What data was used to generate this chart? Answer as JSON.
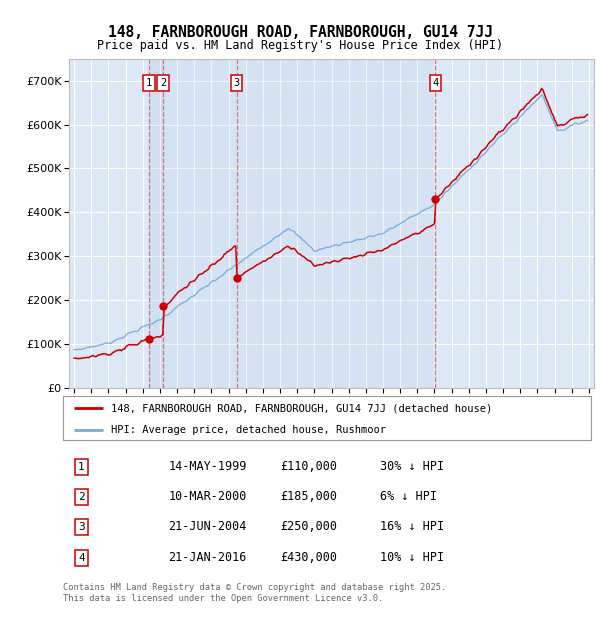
{
  "title": "148, FARNBOROUGH ROAD, FARNBOROUGH, GU14 7JJ",
  "subtitle": "Price paid vs. HM Land Registry's House Price Index (HPI)",
  "legend_red": "148, FARNBOROUGH ROAD, FARNBOROUGH, GU14 7JJ (detached house)",
  "legend_blue": "HPI: Average price, detached house, Rushmoor",
  "footer1": "Contains HM Land Registry data © Crown copyright and database right 2025.",
  "footer2": "This data is licensed under the Open Government Licence v3.0.",
  "transactions": [
    {
      "num": 1,
      "date": "14-MAY-1999",
      "price": 110000,
      "hpi_diff": "30% ↓ HPI",
      "year": 1999.37
    },
    {
      "num": 2,
      "date": "10-MAR-2000",
      "price": 185000,
      "hpi_diff": "6% ↓ HPI",
      "year": 2000.19
    },
    {
      "num": 3,
      "date": "21-JUN-2004",
      "price": 250000,
      "hpi_diff": "16% ↓ HPI",
      "year": 2004.47
    },
    {
      "num": 4,
      "date": "21-JAN-2016",
      "price": 430000,
      "hpi_diff": "10% ↓ HPI",
      "year": 2016.05
    }
  ],
  "ylim": [
    0,
    750000
  ],
  "xlim": [
    1994.7,
    2025.3
  ],
  "plot_bg": "#dce8f5",
  "grid_color": "#ffffff",
  "red_color": "#cc0000",
  "blue_color": "#7aaadd",
  "shade_color": "#c8d8ee",
  "vline_color": "#cc6666"
}
